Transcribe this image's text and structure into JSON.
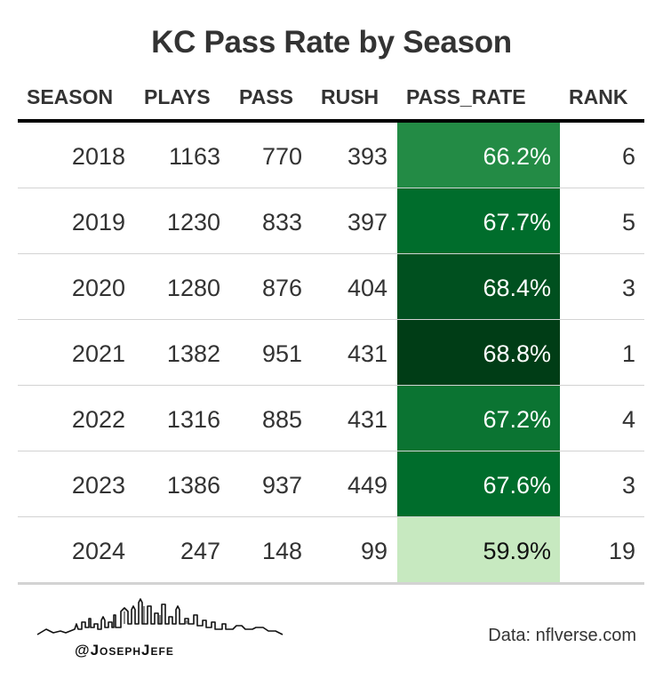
{
  "chart_data": {
    "type": "table",
    "title": "KC Pass Rate by Season",
    "columns": [
      "SEASON",
      "PLAYS",
      "PASS",
      "RUSH",
      "PASS_RATE",
      "RANK"
    ],
    "rows": [
      {
        "season": "2018",
        "plays": "1163",
        "pass": "770",
        "rush": "393",
        "pass_rate": "66.2%",
        "rank": "6",
        "fill": "#238b45",
        "text_color": "#ffffff"
      },
      {
        "season": "2019",
        "plays": "1230",
        "pass": "833",
        "rush": "397",
        "pass_rate": "67.7%",
        "rank": "5",
        "fill": "#006d2c",
        "text_color": "#ffffff"
      },
      {
        "season": "2020",
        "plays": "1280",
        "pass": "876",
        "rush": "404",
        "pass_rate": "68.4%",
        "rank": "3",
        "fill": "#00501f",
        "text_color": "#ffffff"
      },
      {
        "season": "2021",
        "plays": "1382",
        "pass": "951",
        "rush": "431",
        "pass_rate": "68.8%",
        "rank": "1",
        "fill": "#003d16",
        "text_color": "#ffffff"
      },
      {
        "season": "2022",
        "plays": "1316",
        "pass": "885",
        "rush": "431",
        "pass_rate": "67.2%",
        "rank": "4",
        "fill": "#0b7432",
        "text_color": "#ffffff"
      },
      {
        "season": "2023",
        "plays": "1386",
        "pass": "937",
        "rush": "449",
        "pass_rate": "67.6%",
        "rank": "3",
        "fill": "#006d2c",
        "text_color": "#ffffff"
      },
      {
        "season": "2024",
        "plays": "247",
        "pass": "148",
        "rush": "99",
        "pass_rate": "59.9%",
        "rank": "19",
        "fill": "#c7e9c0",
        "text_color": "#111111"
      }
    ]
  },
  "footer": {
    "handle": "@JosephJefe",
    "source": "Data: nflverse.com",
    "logo_icon": "city-skyline-icon"
  }
}
